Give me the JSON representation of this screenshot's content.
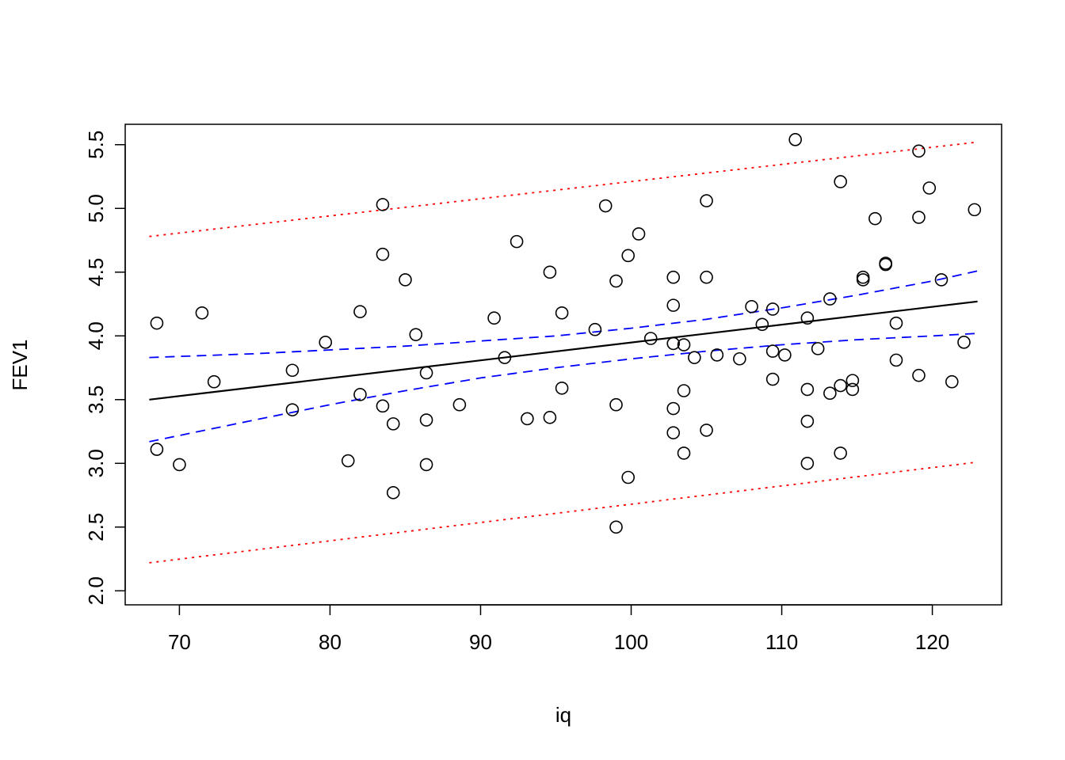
{
  "chart_data": {
    "type": "scatter",
    "title": "",
    "xlabel": "iq",
    "ylabel": "FEV1",
    "xlim": [
      66.4,
      124.6
    ],
    "ylim": [
      1.89,
      5.66
    ],
    "x_ticks": [
      70,
      80,
      90,
      100,
      110,
      120
    ],
    "y_ticks": [
      2.0,
      2.5,
      3.0,
      3.5,
      4.0,
      4.5,
      5.0,
      5.5
    ],
    "y_tick_labels": [
      "2.0",
      "2.5",
      "3.0",
      "3.5",
      "4.0",
      "4.5",
      "5.0",
      "5.5"
    ],
    "grid": false,
    "legend": "none",
    "points": [
      {
        "x": 68.5,
        "y": 4.1
      },
      {
        "x": 68.5,
        "y": 3.11
      },
      {
        "x": 70.0,
        "y": 2.99
      },
      {
        "x": 71.5,
        "y": 4.18
      },
      {
        "x": 72.3,
        "y": 3.64
      },
      {
        "x": 77.5,
        "y": 3.73
      },
      {
        "x": 77.5,
        "y": 3.42
      },
      {
        "x": 79.7,
        "y": 3.95
      },
      {
        "x": 81.2,
        "y": 3.02
      },
      {
        "x": 82.0,
        "y": 4.19
      },
      {
        "x": 82.0,
        "y": 3.54
      },
      {
        "x": 83.5,
        "y": 5.03
      },
      {
        "x": 83.5,
        "y": 4.64
      },
      {
        "x": 83.5,
        "y": 3.45
      },
      {
        "x": 84.2,
        "y": 3.31
      },
      {
        "x": 84.2,
        "y": 2.77
      },
      {
        "x": 85.0,
        "y": 4.44
      },
      {
        "x": 85.7,
        "y": 4.01
      },
      {
        "x": 86.4,
        "y": 3.71
      },
      {
        "x": 86.4,
        "y": 3.34
      },
      {
        "x": 86.4,
        "y": 2.99
      },
      {
        "x": 88.6,
        "y": 3.46
      },
      {
        "x": 90.9,
        "y": 4.14
      },
      {
        "x": 91.6,
        "y": 3.83
      },
      {
        "x": 92.4,
        "y": 4.74
      },
      {
        "x": 93.1,
        "y": 3.35
      },
      {
        "x": 94.6,
        "y": 4.5
      },
      {
        "x": 94.6,
        "y": 3.36
      },
      {
        "x": 95.4,
        "y": 4.18
      },
      {
        "x": 95.4,
        "y": 3.59
      },
      {
        "x": 97.6,
        "y": 4.05
      },
      {
        "x": 98.3,
        "y": 5.02
      },
      {
        "x": 99.0,
        "y": 4.43
      },
      {
        "x": 99.0,
        "y": 3.46
      },
      {
        "x": 99.0,
        "y": 2.5
      },
      {
        "x": 99.8,
        "y": 4.63
      },
      {
        "x": 99.8,
        "y": 2.89
      },
      {
        "x": 100.5,
        "y": 4.8
      },
      {
        "x": 101.3,
        "y": 3.98
      },
      {
        "x": 102.8,
        "y": 4.46
      },
      {
        "x": 102.8,
        "y": 4.24
      },
      {
        "x": 102.8,
        "y": 3.94
      },
      {
        "x": 102.8,
        "y": 3.43
      },
      {
        "x": 102.8,
        "y": 3.24
      },
      {
        "x": 103.5,
        "y": 3.93
      },
      {
        "x": 103.5,
        "y": 3.57
      },
      {
        "x": 103.5,
        "y": 3.08
      },
      {
        "x": 104.2,
        "y": 3.83
      },
      {
        "x": 105.0,
        "y": 5.06
      },
      {
        "x": 105.0,
        "y": 4.46
      },
      {
        "x": 105.0,
        "y": 3.26
      },
      {
        "x": 105.7,
        "y": 3.85
      },
      {
        "x": 107.2,
        "y": 3.82
      },
      {
        "x": 108.0,
        "y": 4.23
      },
      {
        "x": 108.7,
        "y": 4.09
      },
      {
        "x": 109.4,
        "y": 4.21
      },
      {
        "x": 109.4,
        "y": 3.88
      },
      {
        "x": 109.4,
        "y": 3.66
      },
      {
        "x": 110.2,
        "y": 3.85
      },
      {
        "x": 110.9,
        "y": 5.54
      },
      {
        "x": 111.7,
        "y": 4.14
      },
      {
        "x": 111.7,
        "y": 3.58
      },
      {
        "x": 111.7,
        "y": 3.33
      },
      {
        "x": 111.7,
        "y": 3.0
      },
      {
        "x": 112.4,
        "y": 3.9
      },
      {
        "x": 113.2,
        "y": 4.29
      },
      {
        "x": 113.2,
        "y": 3.55
      },
      {
        "x": 113.9,
        "y": 5.21
      },
      {
        "x": 113.9,
        "y": 3.61
      },
      {
        "x": 113.9,
        "y": 3.08
      },
      {
        "x": 114.7,
        "y": 3.65
      },
      {
        "x": 114.7,
        "y": 3.58
      },
      {
        "x": 115.4,
        "y": 4.46
      },
      {
        "x": 115.4,
        "y": 4.44
      },
      {
        "x": 116.2,
        "y": 4.92
      },
      {
        "x": 116.9,
        "y": 4.57
      },
      {
        "x": 116.9,
        "y": 4.56
      },
      {
        "x": 117.6,
        "y": 4.1
      },
      {
        "x": 117.6,
        "y": 3.81
      },
      {
        "x": 119.1,
        "y": 5.45
      },
      {
        "x": 119.1,
        "y": 4.93
      },
      {
        "x": 119.1,
        "y": 3.69
      },
      {
        "x": 119.8,
        "y": 5.16
      },
      {
        "x": 120.6,
        "y": 4.44
      },
      {
        "x": 121.3,
        "y": 3.64
      },
      {
        "x": 122.1,
        "y": 3.95
      },
      {
        "x": 122.8,
        "y": 4.99
      }
    ],
    "series": [
      {
        "kind": "fit",
        "color": "#000000",
        "dash": "solid",
        "x": [
          68,
          123
        ],
        "y": [
          3.5,
          4.27
        ]
      },
      {
        "kind": "confidence-upper",
        "color": "#0000ff",
        "dash": "dashed",
        "x": [
          68,
          75,
          80,
          85,
          90,
          95,
          100,
          105,
          110,
          115,
          120,
          123
        ],
        "y": [
          3.83,
          3.86,
          3.89,
          3.92,
          3.96,
          4.0,
          4.06,
          4.13,
          4.22,
          4.32,
          4.43,
          4.51
        ]
      },
      {
        "kind": "confidence-lower",
        "color": "#0000ff",
        "dash": "dashed",
        "x": [
          68,
          75,
          80,
          85,
          90,
          95,
          100,
          105,
          110,
          115,
          120,
          123
        ],
        "y": [
          3.17,
          3.34,
          3.46,
          3.57,
          3.67,
          3.75,
          3.82,
          3.88,
          3.93,
          3.97,
          4.0,
          4.02
        ]
      },
      {
        "kind": "prediction-upper",
        "color": "#ff0000",
        "dash": "dotted",
        "x": [
          68,
          123
        ],
        "y": [
          4.78,
          5.52
        ]
      },
      {
        "kind": "prediction-lower",
        "color": "#ff0000",
        "dash": "dotted",
        "x": [
          68,
          123
        ],
        "y": [
          2.22,
          3.01
        ]
      }
    ]
  }
}
